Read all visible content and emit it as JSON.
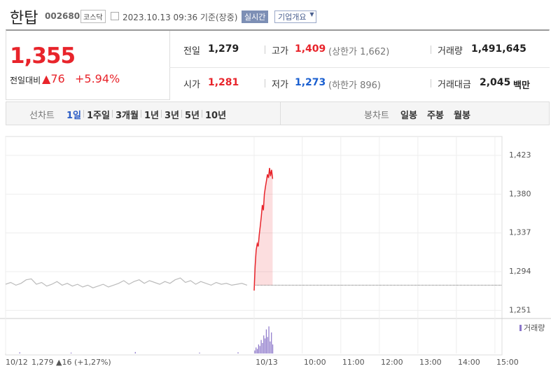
{
  "header": {
    "name": "한탑",
    "code": "002680",
    "market": "코스닥",
    "timestamp": "2023.10.13 09:36 기준(장중)",
    "realtime": "실시간",
    "overview": "기업개요"
  },
  "quote": {
    "price": "1,355",
    "change_label": "전일대비",
    "change": "76",
    "change_pct": "+5.94%"
  },
  "stats": [
    [
      {
        "label": "전일",
        "value": "1,279",
        "color": "#222"
      },
      {
        "label": "고가",
        "value": "1,409",
        "color": "#e8242b",
        "note": "(상한가 1,662)"
      },
      {
        "label": "거래량",
        "value": "1,491,645",
        "color": "#222"
      }
    ],
    [
      {
        "label": "시가",
        "value": "1,281",
        "color": "#e8242b"
      },
      {
        "label": "저가",
        "value": "1,273",
        "color": "#1a5fd0",
        "note": "(하한가 896)"
      },
      {
        "label": "거래대금",
        "value": "2,045",
        "color": "#222",
        "note": "백만"
      }
    ]
  ],
  "tabs": {
    "line_label": "선차트",
    "periods": [
      "1일",
      "1주일",
      "3개월",
      "1년",
      "3년",
      "5년",
      "10년"
    ],
    "active": 0,
    "candle_label": "봉차트",
    "candles": [
      "일봉",
      "주봉",
      "월봉"
    ]
  },
  "chart_data": {
    "type": "line",
    "xlim": [
      -402,
      371
    ],
    "ylim": [
      1242,
      1444
    ],
    "xticks": [
      {
        "value": -402,
        "label": "10/12"
      },
      {
        "value": -15,
        "label": "10/13"
      },
      {
        "value": 60,
        "label": "10:00"
      },
      {
        "value": 120,
        "label": "11:00"
      },
      {
        "value": 180,
        "label": "12:00"
      },
      {
        "value": 240,
        "label": "13:00"
      },
      {
        "value": 300,
        "label": "14:00"
      },
      {
        "value": 360,
        "label": "15:00"
      }
    ],
    "yticks": [
      {
        "value": 1251,
        "label": "1,251"
      },
      {
        "value": 1294,
        "label": "1,294"
      },
      {
        "value": 1337,
        "label": "1,337"
      },
      {
        "value": 1380,
        "label": "1,380"
      },
      {
        "value": 1423,
        "label": "1,423"
      }
    ],
    "grid": true,
    "baseline": 1279,
    "annotation": "1,279 ▲16 (+1,27%)",
    "series": [
      {
        "color": "#bbbbbb",
        "x": [
          -402,
          -394,
          -386,
          -378,
          -370,
          -362,
          -354,
          -346,
          -338,
          -330,
          -322,
          -314,
          -306,
          -298,
          -290,
          -282,
          -274,
          -266,
          -258,
          -250,
          -242,
          -234,
          -226,
          -218,
          -210,
          -202,
          -194,
          -186,
          -178,
          -170,
          -162,
          -154,
          -146,
          -138,
          -130,
          -122,
          -114,
          -106,
          -98,
          -90,
          -82,
          -74,
          -66,
          -58,
          -50,
          -42,
          -34,
          -26
        ],
        "values": [
          1280,
          1282,
          1279,
          1281,
          1285,
          1286,
          1280,
          1282,
          1278,
          1280,
          1283,
          1279,
          1281,
          1278,
          1280,
          1277,
          1279,
          1276,
          1278,
          1280,
          1277,
          1279,
          1281,
          1284,
          1280,
          1283,
          1285,
          1281,
          1284,
          1282,
          1280,
          1283,
          1281,
          1285,
          1287,
          1282,
          1284,
          1280,
          1283,
          1281,
          1279,
          1282,
          1280,
          1281,
          1279,
          1280,
          1281,
          1279
        ]
      },
      {
        "color": "#e8242b",
        "x": [
          -15,
          -13.4,
          -11.8,
          -10.2,
          -8.6,
          -7,
          -5.4,
          -3.8,
          -2.2,
          -0.6,
          1,
          2.6,
          4.2,
          5.8,
          7.4,
          9,
          10.6,
          12.2,
          13.8
        ],
        "values": [
          1273,
          1300,
          1318,
          1325,
          1322,
          1335,
          1345,
          1355,
          1368,
          1362,
          1380,
          1388,
          1395,
          1402,
          1398,
          1409,
          1400,
          1407,
          1397
        ]
      }
    ],
    "volume": {
      "name": "거래량",
      "color": "#8b76c9",
      "vlim": [
        0,
        100
      ],
      "x": [
        -380,
        -300,
        -200,
        -100,
        -40,
        -14,
        -12,
        -10,
        -8,
        -6,
        -4,
        -2,
        0,
        2,
        4,
        6,
        8,
        10,
        12,
        14
      ],
      "values": [
        4,
        3,
        5,
        3,
        4,
        10,
        20,
        15,
        30,
        25,
        45,
        35,
        60,
        50,
        80,
        55,
        90,
        40,
        70,
        30
      ]
    }
  }
}
